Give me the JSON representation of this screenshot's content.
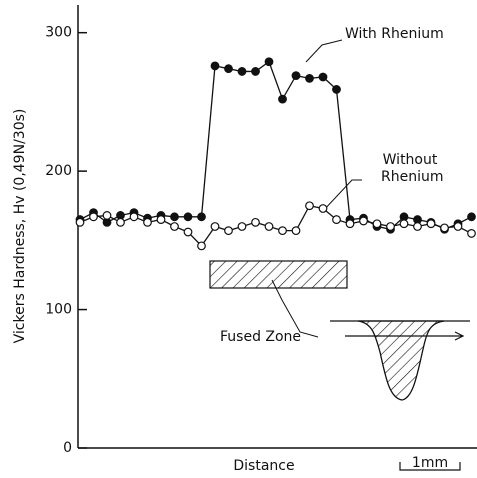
{
  "chart_data": {
    "type": "line",
    "xlabel": "Distance",
    "ylabel": "Vickers Hardness, Hv (0,49N/30s)",
    "categories": [
      null,
      null,
      null,
      null,
      null,
      null,
      null,
      null,
      null,
      null,
      null,
      null,
      null,
      null,
      null,
      null,
      null,
      null,
      null,
      null,
      null,
      null,
      null,
      null,
      null,
      null,
      null,
      null,
      null,
      null
    ],
    "series": [
      {
        "name": "With Rhenium",
        "color": "#111111",
        "marker": "filled",
        "values": [
          165,
          170,
          163,
          168,
          170,
          166,
          168,
          167,
          167,
          167,
          276,
          274,
          272,
          272,
          279,
          252,
          269,
          267,
          268,
          259,
          165,
          166,
          160,
          158,
          167,
          165,
          163,
          158,
          162,
          167
        ]
      },
      {
        "name": "Without Rhenium",
        "color": "#111111",
        "marker": "open",
        "values": [
          163,
          167,
          168,
          163,
          167,
          163,
          165,
          160,
          156,
          146,
          160,
          157,
          160,
          163,
          160,
          157,
          157,
          175,
          173,
          165,
          162,
          164,
          162,
          160,
          162,
          160,
          162,
          159,
          160,
          155
        ]
      }
    ],
    "ylim": [
      0,
      320
    ],
    "yticks": [
      0,
      100,
      200,
      300
    ],
    "annotations": [
      "Fused Zone",
      "1mm"
    ]
  }
}
